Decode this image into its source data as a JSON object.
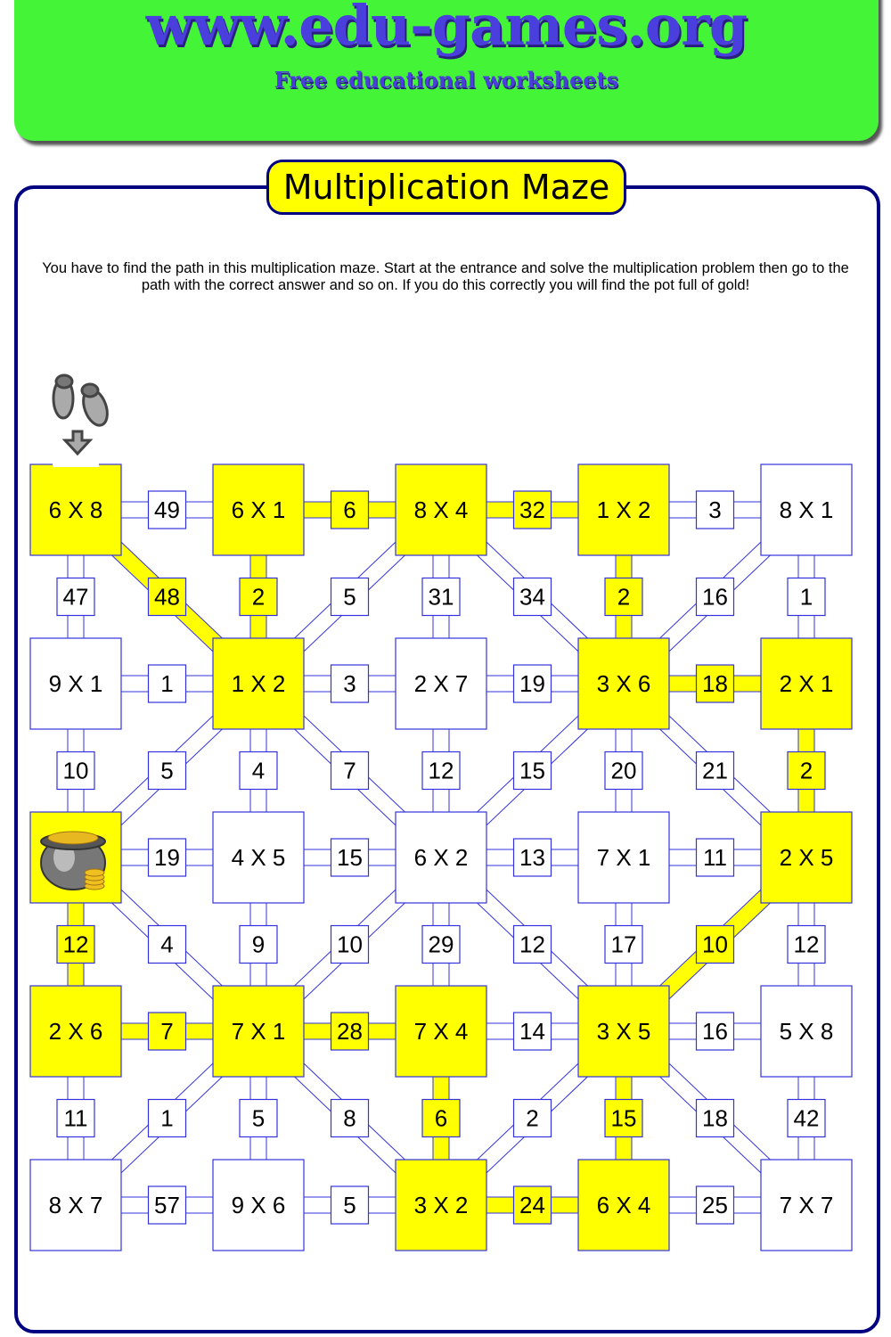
{
  "header": {
    "site": "www.edu-games.org",
    "tagline": "Free educational worksheets"
  },
  "title": "Multiplication Maze",
  "instructions": "You have to find the path in this multiplication maze. Start at the entrance and solve the multiplication problem then go to the path with the correct answer and so on. If you do this correctly you will find the pot full of gold!",
  "colors": {
    "path": "#ffff00",
    "maze_line": "#3333dd",
    "frame": "#000080",
    "banner": "#44f436"
  },
  "icons": {
    "start": "footprints-icon",
    "start_arrow": "arrow-down-icon",
    "goal": "pot-of-gold-icon"
  },
  "maze": {
    "rows": [
      [
        "6 X 8",
        "49",
        "6 X 1",
        "6",
        "8 X 4",
        "32",
        "1 X 2",
        "3",
        "8 X 1"
      ],
      [
        "47",
        "48",
        "2",
        "5",
        "31",
        "34",
        "2",
        "16",
        "1"
      ],
      [
        "9 X 1",
        "1",
        "1 X 2",
        "3",
        "2 X 7",
        "19",
        "3 X 6",
        "18",
        "2 X 1"
      ],
      [
        "10",
        "5",
        "4",
        "7",
        "12",
        "15",
        "20",
        "21",
        "2"
      ],
      [
        "",
        "19",
        "4 X 5",
        "15",
        "6 X 2",
        "13",
        "7 X 1",
        "11",
        "2 X 5"
      ],
      [
        "12",
        "4",
        "9",
        "10",
        "29",
        "12",
        "17",
        "10",
        "12"
      ],
      [
        "2 X 6",
        "7",
        "7 X 1",
        "28",
        "7 X 4",
        "14",
        "3 X 5",
        "16",
        "5 X 8"
      ],
      [
        "11",
        "1",
        "5",
        "8",
        "6",
        "2",
        "15",
        "18",
        "42"
      ],
      [
        "8 X 7",
        "57",
        "9 X 6",
        "5",
        "3 X 2",
        "24",
        "6 X 4",
        "25",
        "7 X 7"
      ]
    ],
    "diagonals": {
      "1,1": "\\",
      "1,3": "/",
      "1,5": "\\",
      "1,7": "/",
      "3,1": "/",
      "3,3": "\\",
      "3,5": "/",
      "3,7": "\\",
      "5,1": "\\",
      "5,3": "/",
      "5,5": "\\",
      "5,7": "/",
      "7,1": "/",
      "7,3": "\\",
      "7,5": "/",
      "7,7": "\\"
    },
    "path": [
      "0,0",
      "1,1",
      "2,2",
      "1,2",
      "0,2",
      "0,3",
      "0,4",
      "0,5",
      "0,6",
      "1,6",
      "2,6",
      "2,7",
      "2,8",
      "3,8",
      "4,8",
      "5,7",
      "6,6",
      "7,6",
      "8,6",
      "8,5",
      "8,4",
      "7,4",
      "6,4",
      "6,3",
      "6,2",
      "6,1",
      "6,0",
      "5,0",
      "4,0"
    ],
    "goal": "4,0",
    "start": "0,0"
  }
}
